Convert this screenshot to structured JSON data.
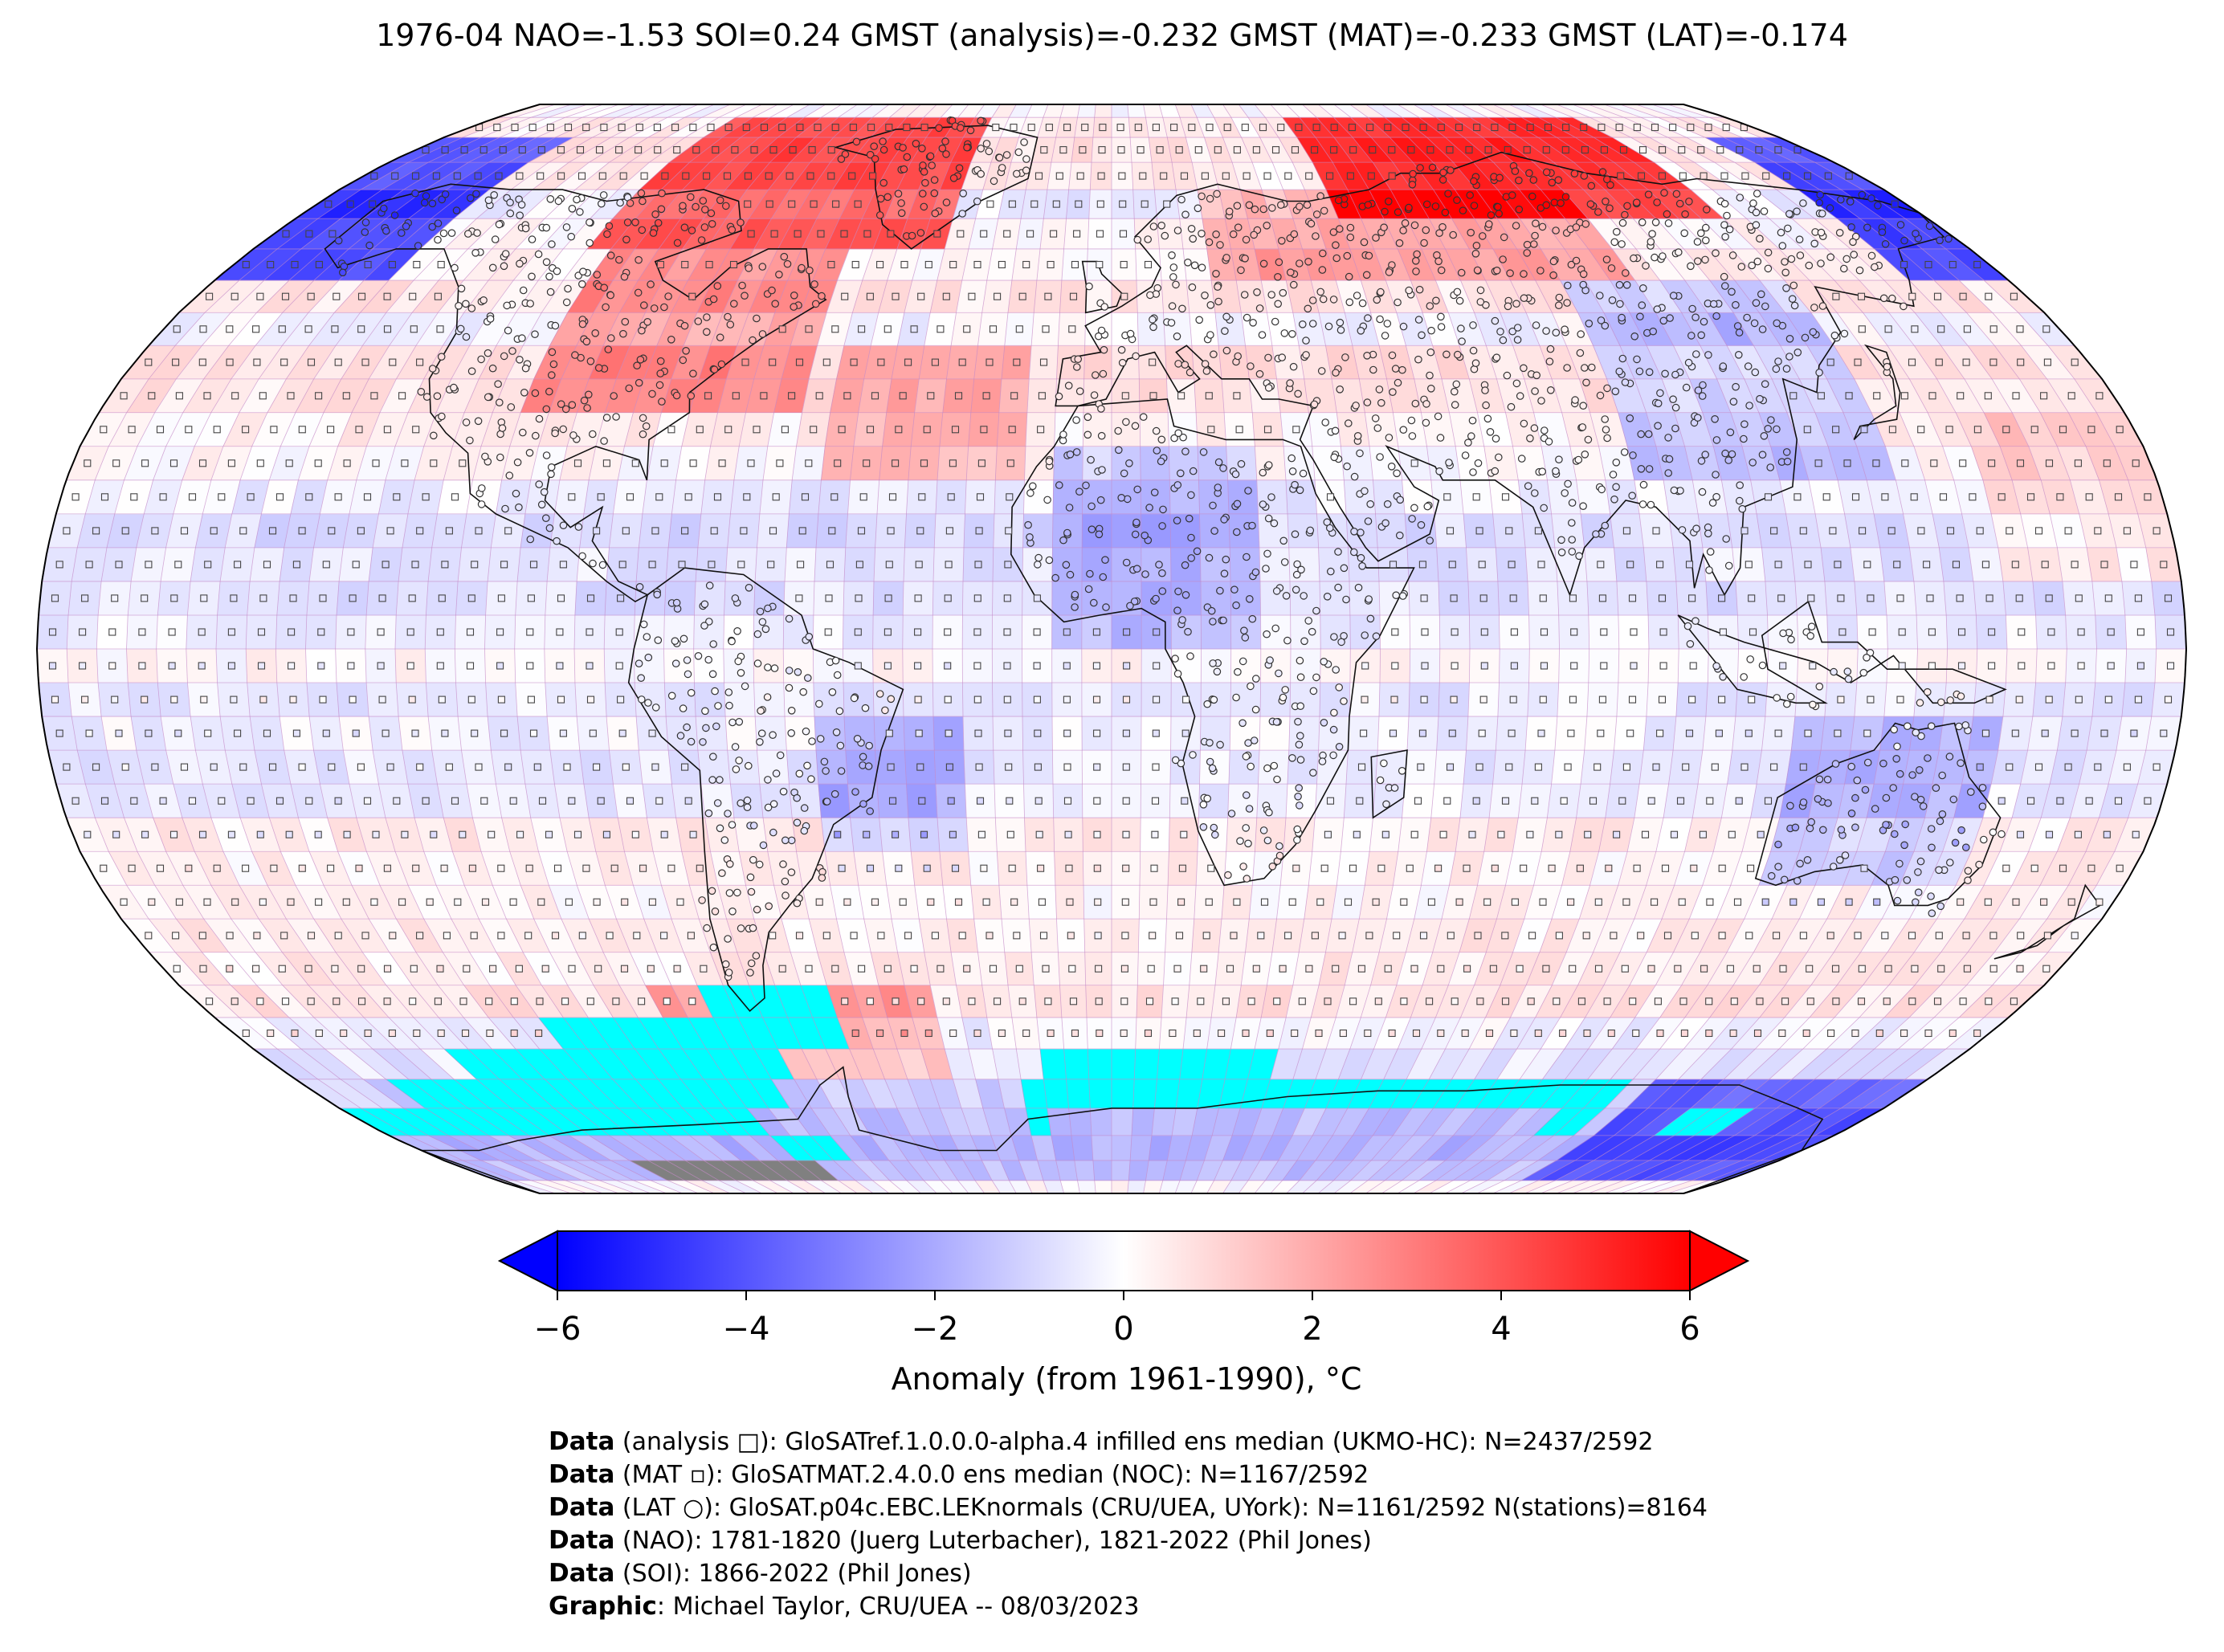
{
  "title": "1976-04 NAO=-1.53 SOI=0.24 GMST (analysis)=-0.232 GMST (MAT)=-0.233 GMST (LAT)=-0.174",
  "colorbar": {
    "label": "Anomaly (from 1961-1990), °C",
    "ticks": [
      "−6",
      "−4",
      "−2",
      "0",
      "2",
      "4",
      "6"
    ],
    "tick_values": [
      -6,
      -4,
      -2,
      0,
      2,
      4,
      6
    ],
    "min": -6,
    "max": 6,
    "colors": [
      "#0000ff",
      "#ffffff",
      "#ff0000"
    ],
    "extend": "both"
  },
  "map": {
    "projection": "Robinson",
    "grid_resolution": "5x5 degree",
    "missing_color": "#00ffff",
    "masked_color": "#808080",
    "markers": {
      "analysis": "square",
      "MAT": "small-square",
      "LAT": "circle"
    }
  },
  "credits": [
    {
      "bold": "Data",
      "rest": " (analysis □): GloSATref.1.0.0.0-alpha.4 infilled ens median (UKMO-HC): N=2437/2592"
    },
    {
      "bold": "Data",
      "rest": " (MAT ▫): GloSATMAT.2.4.0.0 ens median (NOC): N=1167/2592"
    },
    {
      "bold": "Data",
      "rest": " (LAT ○): GloSAT.p04c.EBC.LEKnormals (CRU/UEA, UYork): N=1161/2592 N(stations)=8164"
    },
    {
      "bold": "Data",
      "rest": " (NAO): 1781-1820 (Juerg Luterbacher), 1821-2022 (Phil Jones)"
    },
    {
      "bold": "Data",
      "rest": " (SOI): 1866-2022 (Phil Jones)"
    },
    {
      "bold": "Graphic",
      "rest": ": Michael Taylor, CRU/UEA -- 08/03/2023"
    }
  ]
}
